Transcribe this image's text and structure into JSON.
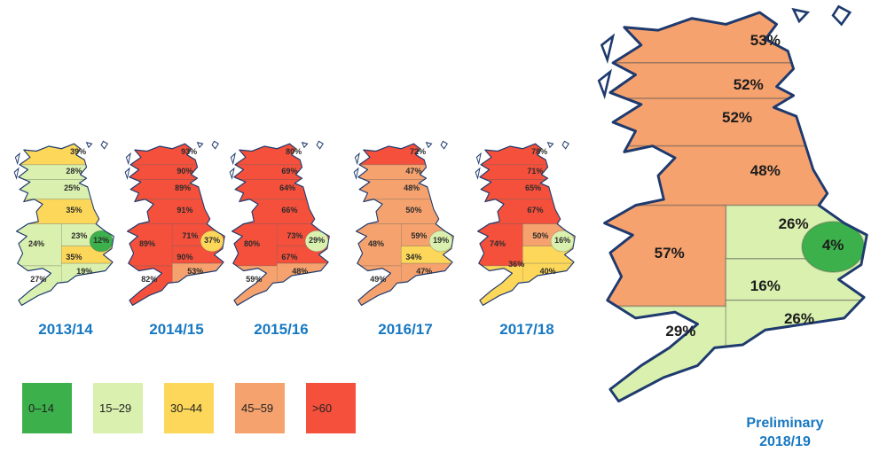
{
  "legend": {
    "items": [
      {
        "label": "0–14",
        "color": "#3cb04b"
      },
      {
        "label": "15–29",
        "color": "#d9f0ae"
      },
      {
        "label": "30–44",
        "color": "#fcd75a"
      },
      {
        "label": "45–59",
        "color": "#f5a26e"
      },
      {
        "label": ">60",
        "color": "#f4503c"
      }
    ]
  },
  "chart_data": {
    "type": "heatmap",
    "subtype": "choropleth-uk-map-series",
    "unit": "percent",
    "value_bins": [
      "0–14",
      "15–29",
      "30–44",
      "45–59",
      ">60"
    ],
    "coast_color": "#1e3a6e",
    "accent_text_color": "#1778c2",
    "maps": [
      {
        "year_label": "2013/14",
        "regions": [
          {
            "zones": [
              "r0"
            ],
            "label": "39%",
            "value": 39,
            "color": "#fcd75a",
            "x": 62,
            "y": 7
          },
          {
            "zones": [
              "r1"
            ],
            "label": "28%",
            "value": 28,
            "color": "#d9f0ae",
            "x": 58,
            "y": 18
          },
          {
            "zones": [
              "r2"
            ],
            "label": "25%",
            "value": 25,
            "color": "#d9f0ae",
            "x": 56,
            "y": 28
          },
          {
            "zones": [
              "r3"
            ],
            "label": "35%",
            "value": 35,
            "color": "#fcd75a",
            "x": 58,
            "y": 41
          },
          {
            "zones": [
              "r4"
            ],
            "label": "23%",
            "value": 23,
            "color": "#d9f0ae",
            "x": 63,
            "y": 56
          },
          {
            "zones": [
              "r5"
            ],
            "label": "24%",
            "value": 24,
            "color": "#d9f0ae",
            "x": 22,
            "y": 61
          },
          {
            "zones": [
              "r6"
            ],
            "label": "12%",
            "value": 12,
            "color": "#3cb04b",
            "x": 84,
            "y": 59
          },
          {
            "zones": [
              "r7"
            ],
            "label": "27%",
            "value": 27,
            "color": "#d9f0ae",
            "x": 24,
            "y": 82
          },
          {
            "zones": [
              "r8"
            ],
            "label": "35%",
            "value": 35,
            "color": "#fcd75a",
            "x": 58,
            "y": 69
          },
          {
            "zones": [
              "r9"
            ],
            "label": "19%",
            "value": 19,
            "color": "#d9f0ae",
            "x": 68,
            "y": 77
          }
        ]
      },
      {
        "year_label": "2014/15",
        "regions": [
          {
            "zones": [
              "r0"
            ],
            "label": "93%",
            "value": 93,
            "color": "#f4503c",
            "x": 62,
            "y": 7
          },
          {
            "zones": [
              "r1"
            ],
            "label": "90%",
            "value": 90,
            "color": "#f4503c",
            "x": 58,
            "y": 18
          },
          {
            "zones": [
              "r2"
            ],
            "label": "89%",
            "value": 89,
            "color": "#f4503c",
            "x": 56,
            "y": 28
          },
          {
            "zones": [
              "r3"
            ],
            "label": "91%",
            "value": 91,
            "color": "#f4503c",
            "x": 58,
            "y": 41
          },
          {
            "zones": [
              "r4"
            ],
            "label": "71%",
            "value": 71,
            "color": "#f4503c",
            "x": 63,
            "y": 56
          },
          {
            "zones": [
              "r5"
            ],
            "label": "89%",
            "value": 89,
            "color": "#f4503c",
            "x": 22,
            "y": 61
          },
          {
            "zones": [
              "r6"
            ],
            "label": "37%",
            "value": 37,
            "color": "#fcd75a",
            "x": 84,
            "y": 59
          },
          {
            "zones": [
              "r7"
            ],
            "label": "82%",
            "value": 82,
            "color": "#f4503c",
            "x": 24,
            "y": 82
          },
          {
            "zones": [
              "r8"
            ],
            "label": "90%",
            "value": 90,
            "color": "#f4503c",
            "x": 58,
            "y": 69
          },
          {
            "zones": [
              "r9"
            ],
            "label": "53%",
            "value": 53,
            "color": "#f5a26e",
            "x": 68,
            "y": 77
          }
        ]
      },
      {
        "year_label": "2015/16",
        "regions": [
          {
            "zones": [
              "r0"
            ],
            "label": "80%",
            "value": 80,
            "color": "#f4503c",
            "x": 62,
            "y": 7
          },
          {
            "zones": [
              "r1"
            ],
            "label": "69%",
            "value": 69,
            "color": "#f4503c",
            "x": 58,
            "y": 18
          },
          {
            "zones": [
              "r2"
            ],
            "label": "64%",
            "value": 64,
            "color": "#f4503c",
            "x": 56,
            "y": 28
          },
          {
            "zones": [
              "r3"
            ],
            "label": "66%",
            "value": 66,
            "color": "#f4503c",
            "x": 58,
            "y": 41
          },
          {
            "zones": [
              "r4"
            ],
            "label": "73%",
            "value": 73,
            "color": "#f4503c",
            "x": 63,
            "y": 56
          },
          {
            "zones": [
              "r5"
            ],
            "label": "80%",
            "value": 80,
            "color": "#f4503c",
            "x": 22,
            "y": 61
          },
          {
            "zones": [
              "r6"
            ],
            "label": "29%",
            "value": 29,
            "color": "#d9f0ae",
            "x": 84,
            "y": 59
          },
          {
            "zones": [
              "r7"
            ],
            "label": "59%",
            "value": 59,
            "color": "#f5a26e",
            "x": 24,
            "y": 82
          },
          {
            "zones": [
              "r8"
            ],
            "label": "67%",
            "value": 67,
            "color": "#f4503c",
            "x": 58,
            "y": 69
          },
          {
            "zones": [
              "r9"
            ],
            "label": "48%",
            "value": 48,
            "color": "#f5a26e",
            "x": 68,
            "y": 77
          }
        ]
      },
      {
        "year_label": "2016/17",
        "regions": [
          {
            "zones": [
              "r0"
            ],
            "label": "72%",
            "value": 72,
            "color": "#f4503c",
            "x": 62,
            "y": 7
          },
          {
            "zones": [
              "r1"
            ],
            "label": "47%",
            "value": 47,
            "color": "#f5a26e",
            "x": 58,
            "y": 18
          },
          {
            "zones": [
              "r2"
            ],
            "label": "48%",
            "value": 48,
            "color": "#f5a26e",
            "x": 56,
            "y": 28
          },
          {
            "zones": [
              "r3"
            ],
            "label": "50%",
            "value": 50,
            "color": "#f5a26e",
            "x": 58,
            "y": 41
          },
          {
            "zones": [
              "r4"
            ],
            "label": "59%",
            "value": 59,
            "color": "#f5a26e",
            "x": 63,
            "y": 56
          },
          {
            "zones": [
              "r5"
            ],
            "label": "48%",
            "value": 48,
            "color": "#f5a26e",
            "x": 22,
            "y": 61
          },
          {
            "zones": [
              "r6"
            ],
            "label": "19%",
            "value": 19,
            "color": "#d9f0ae",
            "x": 84,
            "y": 59
          },
          {
            "zones": [
              "r7"
            ],
            "label": "49%",
            "value": 49,
            "color": "#f5a26e",
            "x": 24,
            "y": 82
          },
          {
            "zones": [
              "r8"
            ],
            "label": "34%",
            "value": 34,
            "color": "#fcd75a",
            "x": 58,
            "y": 69
          },
          {
            "zones": [
              "r9"
            ],
            "label": "47%",
            "value": 47,
            "color": "#f5a26e",
            "x": 68,
            "y": 77
          }
        ]
      },
      {
        "year_label": "2017/18",
        "regions": [
          {
            "zones": [
              "r0"
            ],
            "label": "78%",
            "value": 78,
            "color": "#f4503c",
            "x": 62,
            "y": 7
          },
          {
            "zones": [
              "r1"
            ],
            "label": "71%",
            "value": 71,
            "color": "#f4503c",
            "x": 58,
            "y": 18
          },
          {
            "zones": [
              "r2"
            ],
            "label": "65%",
            "value": 65,
            "color": "#f4503c",
            "x": 56,
            "y": 28
          },
          {
            "zones": [
              "r3"
            ],
            "label": "67%",
            "value": 67,
            "color": "#f4503c",
            "x": 58,
            "y": 41
          },
          {
            "zones": [
              "r4"
            ],
            "label": "50%",
            "value": 50,
            "color": "#f5a26e",
            "x": 63,
            "y": 56
          },
          {
            "zones": [
              "r5"
            ],
            "label": "74%",
            "value": 74,
            "color": "#f4503c",
            "x": 22,
            "y": 61
          },
          {
            "zones": [
              "r6"
            ],
            "label": "16%",
            "value": 16,
            "color": "#d9f0ae",
            "x": 84,
            "y": 59
          },
          {
            "zones": [
              "r7",
              "r8"
            ],
            "label": "36%",
            "value": 36,
            "color": "#fcd75a",
            "x": 40,
            "y": 73
          },
          {
            "zones": [
              "r9"
            ],
            "label": "40%",
            "value": 40,
            "color": "#fcd75a",
            "x": 70,
            "y": 77
          }
        ]
      },
      {
        "caption_lines": [
          "Preliminary",
          "2018/19"
        ],
        "regions": [
          {
            "zones": [
              "r0"
            ],
            "label": "53%",
            "value": 53,
            "color": "#f5a26e",
            "x": 60,
            "y": 9
          },
          {
            "zones": [
              "r1"
            ],
            "label": "52%",
            "value": 52,
            "color": "#f5a26e",
            "x": 54,
            "y": 20
          },
          {
            "zones": [
              "r2"
            ],
            "label": "52%",
            "value": 52,
            "color": "#f5a26e",
            "x": 50,
            "y": 28
          },
          {
            "zones": [
              "r3"
            ],
            "label": "48%",
            "value": 48,
            "color": "#f5a26e",
            "x": 60,
            "y": 41
          },
          {
            "zones": [
              "r4"
            ],
            "label": "26%",
            "value": 26,
            "color": "#d9f0ae",
            "x": 70,
            "y": 54
          },
          {
            "zones": [
              "r5"
            ],
            "label": "57%",
            "value": 57,
            "color": "#f5a26e",
            "x": 26,
            "y": 61
          },
          {
            "zones": [
              "r6"
            ],
            "label": "4%",
            "value": 4,
            "color": "#3cb04b",
            "x": 84,
            "y": 59
          },
          {
            "zones": [
              "r7"
            ],
            "label": "29%",
            "value": 29,
            "color": "#d9f0ae",
            "x": 30,
            "y": 80
          },
          {
            "zones": [
              "r8"
            ],
            "label": "16%",
            "value": 16,
            "color": "#d9f0ae",
            "x": 60,
            "y": 69
          },
          {
            "zones": [
              "r9"
            ],
            "label": "26%",
            "value": 26,
            "color": "#d9f0ae",
            "x": 72,
            "y": 77
          }
        ]
      }
    ]
  }
}
